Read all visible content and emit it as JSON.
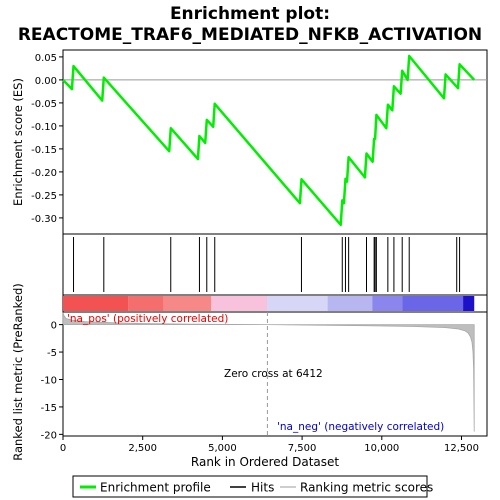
{
  "chart_data": {
    "type": "line",
    "title": "Enrichment plot:",
    "subtitle": "REACTOME_TRAF6_MEDIATED_NFKB_ACTIVATION",
    "xlabel": "Rank in Ordered Dataset",
    "ylabel_top": "Enrichment score (ES)",
    "ylabel_bottom": "Ranked list metric (PreRanked)",
    "xlim": [
      0,
      13300
    ],
    "xticks": [
      0,
      2500,
      5000,
      7500,
      10000,
      12500
    ],
    "xtick_labels": [
      "0",
      "2,500",
      "5,000",
      "7,500",
      "10,000",
      "12,500"
    ],
    "es_ylim": [
      -0.335,
      0.065
    ],
    "es_yticks": [
      0.05,
      0.0,
      -0.05,
      -0.1,
      -0.15,
      -0.2,
      -0.25,
      -0.3
    ],
    "es_ytick_labels": [
      "0.05",
      "0.00",
      "-0.05",
      "-0.10",
      "-0.15",
      "-0.20",
      "-0.25",
      "-0.30"
    ],
    "metric_ylim": [
      -20.3,
      2.3
    ],
    "metric_yticks": [
      0,
      -5,
      -10,
      -15,
      -20
    ],
    "metric_ytick_labels": [
      "0",
      "-5",
      "-10",
      "-15",
      "-20"
    ],
    "hits": [
      330,
      1280,
      3380,
      4280,
      4510,
      4760,
      7480,
      8760,
      8860,
      8960,
      9520,
      9760,
      9790,
      9830,
      10190,
      10380,
      10640,
      10860,
      12440,
      12350
    ],
    "es_profile": {
      "x": [
        0,
        280,
        330,
        1230,
        1280,
        3330,
        3380,
        4230,
        4280,
        4460,
        4510,
        4710,
        4760,
        7430,
        7480,
        8710,
        8760,
        8810,
        8860,
        8910,
        8960,
        9470,
        9520,
        9710,
        9760,
        9790,
        9830,
        10140,
        10190,
        10330,
        10380,
        10590,
        10640,
        10810,
        10860,
        11950,
        12000,
        12390,
        12440,
        12900
      ],
      "y": [
        0.0,
        -0.02,
        0.03,
        -0.045,
        0.005,
        -0.155,
        -0.105,
        -0.172,
        -0.122,
        -0.137,
        -0.087,
        -0.102,
        -0.052,
        -0.268,
        -0.216,
        -0.315,
        -0.262,
        -0.268,
        -0.215,
        -0.221,
        -0.168,
        -0.212,
        -0.16,
        -0.178,
        -0.128,
        -0.128,
        -0.076,
        -0.105,
        -0.054,
        -0.066,
        -0.014,
        -0.03,
        0.02,
        0.0,
        0.052,
        -0.04,
        0.012,
        -0.018,
        0.034,
        0.0
      ]
    },
    "metric_curve": {
      "x": [
        0,
        30,
        100,
        300,
        700,
        1500,
        2500,
        4000,
        6412,
        8000,
        9500,
        11000,
        12000,
        12400,
        12600,
        12700,
        12780,
        12830,
        12860,
        12880,
        12900
      ],
      "y": [
        2.2,
        1.6,
        1.1,
        0.8,
        0.55,
        0.35,
        0.2,
        0.08,
        0.0,
        -0.1,
        -0.2,
        -0.35,
        -0.55,
        -0.8,
        -1.1,
        -1.5,
        -2.2,
        -3.2,
        -5.0,
        -8.0,
        -19.5
      ]
    },
    "heatmap_bands": [
      {
        "x0": 0,
        "x1": 2050,
        "color": "#f25252"
      },
      {
        "x0": 2050,
        "x1": 3150,
        "color": "#f46e6e"
      },
      {
        "x0": 3150,
        "x1": 4650,
        "color": "#f68888"
      },
      {
        "x0": 4650,
        "x1": 6400,
        "color": "#f8c2dc"
      },
      {
        "x0": 6400,
        "x1": 8300,
        "color": "#d8d6f6"
      },
      {
        "x0": 8300,
        "x1": 9700,
        "color": "#b8b6f0"
      },
      {
        "x0": 9700,
        "x1": 10650,
        "color": "#8a86ee"
      },
      {
        "x0": 10650,
        "x1": 12550,
        "color": "#6b66e8"
      },
      {
        "x0": 12550,
        "x1": 12900,
        "color": "#1c10c8"
      }
    ],
    "zero_cross": 6412,
    "zero_cross_label": "Zero cross at 6412",
    "pos_label": "'na_pos' (positively correlated)",
    "neg_label": "'na_neg' (negatively correlated)",
    "legend": {
      "enrichment": "Enrichment profile",
      "hits": "Hits",
      "ranking": "Ranking metric scores"
    },
    "colors": {
      "profile": "#00ee00",
      "hit": "#000000",
      "metric": "#bebebe",
      "pos_label": "#ee0000",
      "neg_label": "#0000cc"
    }
  }
}
